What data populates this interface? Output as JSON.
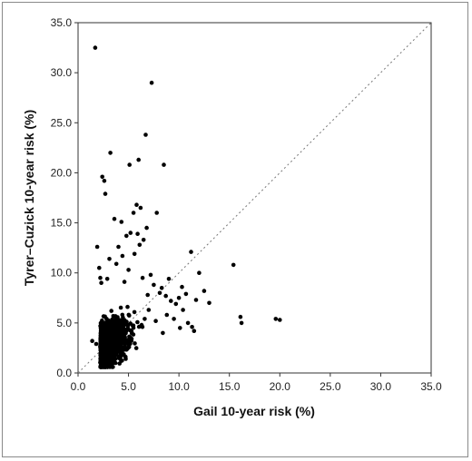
{
  "chart_data": {
    "type": "scatter",
    "title": "",
    "xlabel": "Gail 10-year risk (%)",
    "ylabel": "Tyrer–Cuzick 10-year risk (%)",
    "xlim": [
      0,
      35
    ],
    "ylim": [
      0,
      35
    ],
    "x_ticks": [
      "0.0",
      "5.0",
      "10.0",
      "15.0",
      "20.0",
      "25.0",
      "30.0",
      "35.0"
    ],
    "y_ticks": [
      "0.0",
      "5.0",
      "10.0",
      "15.0",
      "20.0",
      "25.0",
      "30.0",
      "35.0"
    ],
    "grid": false,
    "reference_line": {
      "style": "dotted",
      "from": [
        0,
        0
      ],
      "to": [
        35,
        35
      ]
    },
    "colors": {
      "points": "#000000",
      "reference_line": "#777777",
      "axes": "#333333"
    },
    "series": [
      {
        "x": [
          1.7,
          7.3,
          6.7,
          3.2,
          2.4,
          6.0,
          8.5,
          2.6,
          5.1,
          2.7,
          5.8,
          6.2,
          5.5,
          7.8,
          3.6,
          4.3,
          6.8,
          5.2,
          4.8,
          5.9,
          6.5,
          1.9,
          11.2,
          4.0,
          6.1,
          15.4,
          2.1,
          16.1,
          16.2,
          19.6,
          20.0,
          12.0,
          12.5,
          13.0,
          10.3,
          10.7,
          11.7,
          8.7,
          7.2,
          9.0,
          10.0,
          8.1,
          9.7,
          10.4,
          11.3,
          3.1,
          4.4,
          5.6,
          3.8,
          2.2,
          5.0,
          6.4,
          4.6,
          7.5,
          8.3,
          9.2,
          6.9,
          7.0,
          8.8,
          9.5,
          10.1,
          10.9,
          11.5,
          8.4,
          7.7,
          6.6,
          6.3,
          4.9,
          3.3,
          2.9,
          2.3,
          1.4,
          1.8,
          3.9
        ],
        "y": [
          32.5,
          29.0,
          23.8,
          22.0,
          19.6,
          21.3,
          20.8,
          19.2,
          20.8,
          17.9,
          16.8,
          16.5,
          16.0,
          16.0,
          15.4,
          15.1,
          14.5,
          14.0,
          13.7,
          13.9,
          13.3,
          12.6,
          12.1,
          12.6,
          12.8,
          10.8,
          10.5,
          5.6,
          5.0,
          5.4,
          5.3,
          10.0,
          8.2,
          7.0,
          8.6,
          7.9,
          7.3,
          7.7,
          9.8,
          9.4,
          7.5,
          8.0,
          6.9,
          6.3,
          4.6,
          11.4,
          11.7,
          11.9,
          10.9,
          9.5,
          10.3,
          9.5,
          9.1,
          8.8,
          8.5,
          7.2,
          7.8,
          6.3,
          5.8,
          5.4,
          4.5,
          5.0,
          4.2,
          4.0,
          5.2,
          5.4,
          4.8,
          6.6,
          6.2,
          9.4,
          9.0,
          3.2,
          2.9,
          2.5
        ]
      }
    ]
  }
}
